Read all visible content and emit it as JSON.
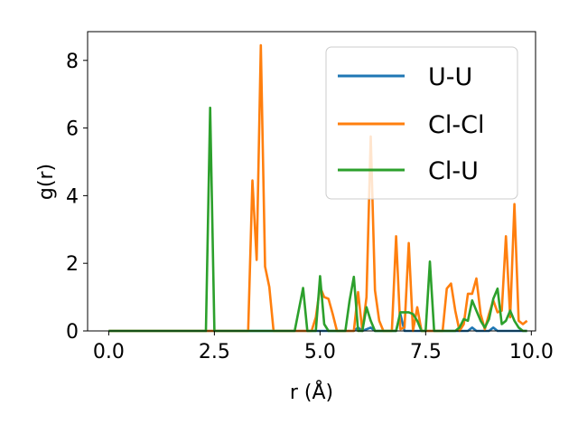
{
  "chart_data": {
    "type": "line",
    "title": "",
    "xlabel": "r (Å)",
    "ylabel": "g(r)",
    "xlim": [
      -0.5,
      10.1
    ],
    "ylim": [
      0,
      8.85
    ],
    "xticks": [
      0.0,
      2.5,
      5.0,
      7.5,
      10.0
    ],
    "xtick_labels": [
      "0.0",
      "2.5",
      "5.0",
      "7.5",
      "10.0"
    ],
    "yticks": [
      0,
      2,
      4,
      6,
      8
    ],
    "ytick_labels": [
      "0",
      "2",
      "4",
      "6",
      "8"
    ],
    "grid": false,
    "legend_position": "top-right",
    "series": [
      {
        "name": "U-U",
        "color": "#1f77b4",
        "points": [
          [
            0,
            0
          ],
          [
            5.8,
            0
          ],
          [
            5.9,
            0.1
          ],
          [
            6.0,
            0
          ],
          [
            6.2,
            0.1
          ],
          [
            6.3,
            0
          ],
          [
            6.8,
            0
          ],
          [
            6.9,
            0.5
          ],
          [
            7.0,
            0
          ],
          [
            8.5,
            0
          ],
          [
            8.6,
            0.1
          ],
          [
            8.7,
            0
          ],
          [
            9.0,
            0
          ],
          [
            9.1,
            0.1
          ],
          [
            9.2,
            0
          ],
          [
            9.9,
            0
          ]
        ]
      },
      {
        "name": "Cl-Cl",
        "color": "#ff7f0e",
        "points": [
          [
            0,
            0
          ],
          [
            3.3,
            0
          ],
          [
            3.4,
            4.45
          ],
          [
            3.5,
            2.1
          ],
          [
            3.6,
            8.45
          ],
          [
            3.7,
            1.9
          ],
          [
            3.8,
            1.3
          ],
          [
            3.9,
            0
          ],
          [
            4.8,
            0
          ],
          [
            4.9,
            0.4
          ],
          [
            5.0,
            1.3
          ],
          [
            5.1,
            1.0
          ],
          [
            5.2,
            0.95
          ],
          [
            5.3,
            0.5
          ],
          [
            5.4,
            0
          ],
          [
            5.8,
            0
          ],
          [
            5.9,
            1.15
          ],
          [
            6.0,
            0
          ],
          [
            6.1,
            1.0
          ],
          [
            6.2,
            5.75
          ],
          [
            6.3,
            1.2
          ],
          [
            6.4,
            0.3
          ],
          [
            6.5,
            0
          ],
          [
            6.7,
            0
          ],
          [
            6.8,
            2.8
          ],
          [
            6.9,
            0.05
          ],
          [
            7.0,
            0.1
          ],
          [
            7.1,
            2.6
          ],
          [
            7.2,
            0
          ],
          [
            7.3,
            0.7
          ],
          [
            7.4,
            0
          ],
          [
            7.9,
            0
          ],
          [
            8.0,
            1.25
          ],
          [
            8.1,
            1.4
          ],
          [
            8.2,
            0.6
          ],
          [
            8.3,
            0
          ],
          [
            8.4,
            0.2
          ],
          [
            8.5,
            1.1
          ],
          [
            8.6,
            1.1
          ],
          [
            8.7,
            1.55
          ],
          [
            8.8,
            0.5
          ],
          [
            8.9,
            0.05
          ],
          [
            9.0,
            0.5
          ],
          [
            9.1,
            0.9
          ],
          [
            9.2,
            0.55
          ],
          [
            9.3,
            0.6
          ],
          [
            9.4,
            2.8
          ],
          [
            9.5,
            0.4
          ],
          [
            9.6,
            3.75
          ],
          [
            9.7,
            0.3
          ],
          [
            9.8,
            0.2
          ],
          [
            9.9,
            0.3
          ]
        ]
      },
      {
        "name": "Cl-U",
        "color": "#2ca02c",
        "points": [
          [
            0,
            0
          ],
          [
            2.3,
            0
          ],
          [
            2.4,
            6.6
          ],
          [
            2.5,
            0
          ],
          [
            4.4,
            0
          ],
          [
            4.6,
            1.27
          ],
          [
            4.7,
            0
          ],
          [
            4.9,
            0
          ],
          [
            5.0,
            1.62
          ],
          [
            5.1,
            0.2
          ],
          [
            5.2,
            0
          ],
          [
            5.6,
            0
          ],
          [
            5.7,
            0.9
          ],
          [
            5.8,
            1.6
          ],
          [
            5.9,
            0
          ],
          [
            6.0,
            0
          ],
          [
            6.1,
            0.7
          ],
          [
            6.2,
            0.3
          ],
          [
            6.3,
            0
          ],
          [
            6.8,
            0
          ],
          [
            6.9,
            0.55
          ],
          [
            7.0,
            0.55
          ],
          [
            7.1,
            0.55
          ],
          [
            7.2,
            0.5
          ],
          [
            7.3,
            0.3
          ],
          [
            7.4,
            0
          ],
          [
            7.5,
            0
          ],
          [
            7.6,
            2.05
          ],
          [
            7.7,
            0
          ],
          [
            8.2,
            0
          ],
          [
            8.3,
            0.1
          ],
          [
            8.4,
            0.35
          ],
          [
            8.5,
            0.3
          ],
          [
            8.6,
            0.9
          ],
          [
            8.7,
            0.6
          ],
          [
            8.8,
            0.3
          ],
          [
            8.9,
            0.1
          ],
          [
            9.0,
            0.35
          ],
          [
            9.1,
            0.95
          ],
          [
            9.2,
            1.25
          ],
          [
            9.3,
            0.2
          ],
          [
            9.4,
            0.3
          ],
          [
            9.5,
            0.6
          ],
          [
            9.6,
            0.3
          ],
          [
            9.7,
            0.1
          ],
          [
            9.8,
            0
          ],
          [
            9.9,
            0
          ]
        ]
      }
    ]
  }
}
